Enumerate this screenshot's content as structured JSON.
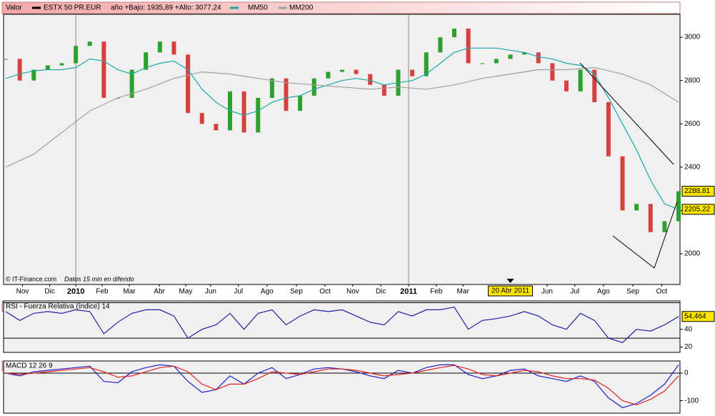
{
  "chart_data": [
    {
      "type": "stock",
      "label": "Valor",
      "subtitle": "año +Bajo: 1935,89 +Alto: 3077,24",
      "note": "© IT-Finance.com",
      "note2": "Datos 15 min en diferido",
      "up_color": "#2ea02e",
      "down_color": "#d84040",
      "xlim": [
        0,
        24
      ],
      "x": [
        0,
        0.5,
        1,
        1.5,
        2,
        2.5,
        3,
        3.5,
        4,
        4.5,
        5,
        5.5,
        6,
        6.5,
        7,
        7.5,
        8,
        8.5,
        9,
        9.5,
        10,
        10.5,
        11,
        11.5,
        12,
        12.5,
        13,
        13.5,
        14,
        14.5,
        15,
        15.5,
        16,
        16.5,
        17,
        17.5,
        18,
        18.5,
        19,
        19.5,
        20,
        20.5,
        21,
        21.5,
        22,
        22.5,
        23,
        23.5,
        24
      ],
      "xticks": [
        {
          "value": 0.6,
          "label": "Nov"
        },
        {
          "value": 1.57,
          "label": "Dic"
        },
        {
          "value": 2.5,
          "label": "2010"
        },
        {
          "value": 3.44,
          "label": "Feb"
        },
        {
          "value": 4.41,
          "label": "Mar"
        },
        {
          "value": 5.48,
          "label": "Abr"
        },
        {
          "value": 6.42,
          "label": "May"
        },
        {
          "value": 7.31,
          "label": "Jun"
        },
        {
          "value": 8.3,
          "label": "Jul"
        },
        {
          "value": 9.32,
          "label": "Ago"
        },
        {
          "value": 10.37,
          "label": "Sep"
        },
        {
          "value": 11.39,
          "label": "Oct"
        },
        {
          "value": 12.38,
          "label": "Nov"
        },
        {
          "value": 13.38,
          "label": "Dic"
        },
        {
          "value": 14.37,
          "label": "2011"
        },
        {
          "value": 15.36,
          "label": "Feb"
        },
        {
          "value": 16.31,
          "label": "Mar"
        },
        {
          "value": 19.31,
          "label": "Jun"
        },
        {
          "value": 20.3,
          "label": "Jul"
        },
        {
          "value": 21.32,
          "label": "Ago"
        },
        {
          "value": 22.37,
          "label": "Sep"
        },
        {
          "value": 23.4,
          "label": "Oct"
        }
      ],
      "crosshair": {
        "value": 18.0,
        "label": "20 Abr 2011"
      },
      "ylim": [
        1858,
        3106
      ],
      "yticks": [
        2000,
        2200,
        2400,
        2600,
        2800,
        3000
      ],
      "series": [
        {
          "name": "ESTX 50 PR.EUR",
          "color": "#000000",
          "values": [
            2900,
            2800,
            2850,
            2870,
            2880,
            2960,
            2980,
            2720,
            2720,
            2850,
            2930,
            2980,
            2920,
            2650,
            2600,
            2570,
            2750,
            2560,
            2720,
            2810,
            2660,
            2730,
            2810,
            2840,
            2850,
            2830,
            2780,
            2730,
            2850,
            2820,
            2930,
            3000,
            3040,
            2880,
            2880,
            2900,
            2920,
            2930,
            2880,
            2800,
            2750,
            2850,
            2700,
            2450,
            2200,
            2230,
            2100,
            2150,
            2288.81
          ]
        },
        {
          "name": "MM50",
          "color": "#1aa8a8",
          "values": [
            2810,
            2830,
            2845,
            2850,
            2850,
            2860,
            2900,
            2890,
            2850,
            2830,
            2860,
            2880,
            2890,
            2850,
            2760,
            2700,
            2660,
            2640,
            2660,
            2700,
            2720,
            2730,
            2760,
            2780,
            2800,
            2810,
            2800,
            2780,
            2790,
            2800,
            2830,
            2880,
            2930,
            2950,
            2950,
            2950,
            2940,
            2930,
            2910,
            2900,
            2880,
            2870,
            2830,
            2720,
            2600,
            2480,
            2340,
            2230,
            2205.22
          ]
        },
        {
          "name": "MM200",
          "color": "#a0a0a0",
          "values": [
            2400,
            2430,
            2460,
            2510,
            2560,
            2610,
            2660,
            2690,
            2720,
            2740,
            2760,
            2785,
            2810,
            2825,
            2840,
            2835,
            2830,
            2820,
            2810,
            2800,
            2790,
            2785,
            2780,
            2775,
            2770,
            2765,
            2760,
            2765,
            2770,
            2765,
            2760,
            2770,
            2780,
            2795,
            2810,
            2820,
            2830,
            2840,
            2850,
            2850,
            2850,
            2855,
            2860,
            2845,
            2830,
            2805,
            2780,
            2740,
            2700
          ]
        }
      ],
      "price_tags": [
        {
          "value": 2288.81,
          "label": "2288,81"
        },
        {
          "value": 2205.22,
          "label": "2205,22"
        }
      ]
    },
    {
      "type": "line",
      "title": "RSI - Fuerza Relativa (índice) 14",
      "xlim": [
        0,
        24
      ],
      "x": [
        0,
        0.5,
        1,
        1.5,
        2,
        2.5,
        3,
        3.5,
        4,
        4.5,
        5,
        5.5,
        6,
        6.5,
        7,
        7.5,
        8,
        8.5,
        9,
        9.5,
        10,
        10.5,
        11,
        11.5,
        12,
        12.5,
        13,
        13.5,
        14,
        14.5,
        15,
        15.5,
        16,
        16.5,
        17,
        17.5,
        18,
        18.5,
        19,
        19.5,
        20,
        20.5,
        21,
        21.5,
        22,
        22.5,
        23,
        23.5,
        24
      ],
      "ylim": [
        14,
        72
      ],
      "yticks": [
        20,
        40
      ],
      "hlines": [
        30,
        70
      ],
      "series": [
        {
          "name": "RSI",
          "color": "#2020a0",
          "values": [
            60,
            50,
            58,
            60,
            58,
            62,
            60,
            35,
            48,
            58,
            62,
            62,
            55,
            30,
            40,
            45,
            58,
            40,
            58,
            62,
            45,
            55,
            62,
            60,
            62,
            55,
            48,
            45,
            60,
            55,
            62,
            62,
            65,
            40,
            50,
            52,
            55,
            60,
            55,
            45,
            40,
            58,
            50,
            30,
            25,
            40,
            38,
            45,
            54.464
          ]
        }
      ],
      "price_tags": [
        {
          "value": 54.464,
          "label": "54,464"
        }
      ]
    },
    {
      "type": "line",
      "title": "MACD 12 26 9",
      "xlim": [
        0,
        24
      ],
      "x": [
        0,
        0.5,
        1,
        1.5,
        2,
        2.5,
        3,
        3.5,
        4,
        4.5,
        5,
        5.5,
        6,
        6.5,
        7,
        7.5,
        8,
        8.5,
        9,
        9.5,
        10,
        10.5,
        11,
        11.5,
        12,
        12.5,
        13,
        13.5,
        14,
        14.5,
        15,
        15.5,
        16,
        16.5,
        17,
        17.5,
        18,
        18.5,
        19,
        19.5,
        20,
        20.5,
        21,
        21.5,
        22,
        22.5,
        23,
        23.5,
        24
      ],
      "ylim": [
        -145,
        44
      ],
      "yticks": [
        0,
        -100
      ],
      "hlines": [
        0
      ],
      "series": [
        {
          "name": "MACD",
          "color": "#2020c0",
          "values": [
            0,
            -10,
            5,
            10,
            15,
            20,
            25,
            -30,
            -35,
            5,
            20,
            30,
            25,
            -30,
            -70,
            -60,
            -10,
            -40,
            0,
            20,
            -20,
            -5,
            15,
            20,
            15,
            5,
            -10,
            -20,
            10,
            0,
            20,
            30,
            30,
            -5,
            -20,
            -10,
            10,
            15,
            -10,
            -20,
            -30,
            -10,
            -30,
            -90,
            -125,
            -110,
            -80,
            -40,
            30
          ]
        },
        {
          "name": "Signal",
          "color": "#e02020",
          "values": [
            0,
            -5,
            0,
            5,
            10,
            15,
            20,
            5,
            -15,
            -10,
            5,
            20,
            25,
            5,
            -40,
            -60,
            -40,
            -40,
            -20,
            5,
            0,
            -5,
            5,
            15,
            15,
            10,
            0,
            -10,
            -5,
            0,
            10,
            20,
            28,
            15,
            -5,
            -10,
            0,
            10,
            5,
            -10,
            -20,
            -20,
            -25,
            -55,
            -100,
            -115,
            -95,
            -65,
            -10
          ]
        }
      ]
    }
  ]
}
